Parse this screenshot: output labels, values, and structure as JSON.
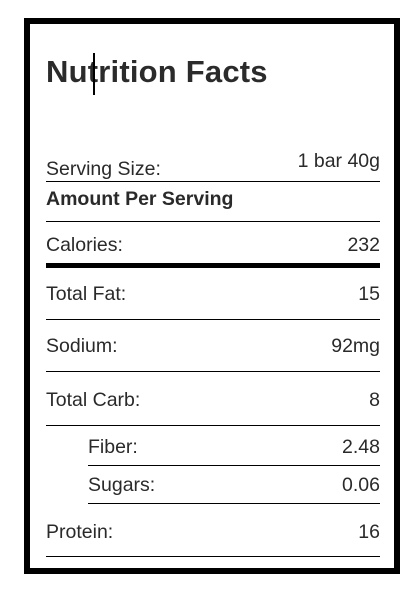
{
  "label": {
    "title": "Nutrition Facts",
    "serving_size": {
      "label": "Serving Size:",
      "value": "1 bar 40g"
    },
    "amount_per_serving": "Amount Per Serving",
    "calories": {
      "label": "Calories:",
      "value": "232"
    },
    "nutrients": [
      {
        "label": "Total Fat:",
        "value": "15"
      },
      {
        "label": "Sodium:",
        "value": "92mg"
      },
      {
        "label": "Total Carb:",
        "value": "8"
      }
    ],
    "sub_nutrients": [
      {
        "label": "Fiber:",
        "value": "2.48"
      },
      {
        "label": "Sugars:",
        "value": "0.06"
      }
    ],
    "protein": {
      "label": "Protein:",
      "value": "16"
    }
  }
}
